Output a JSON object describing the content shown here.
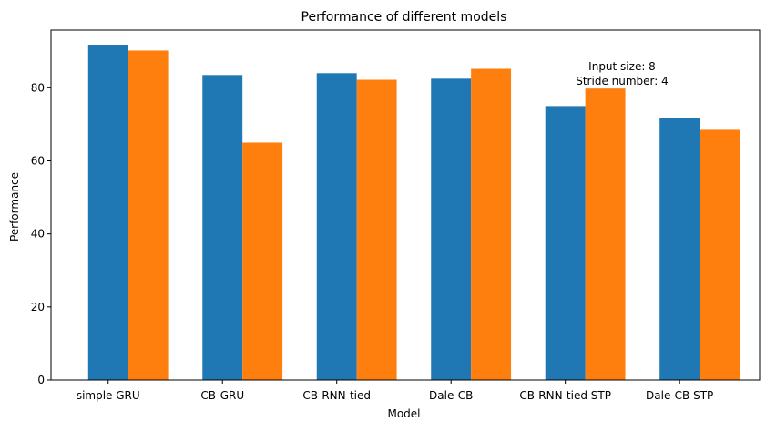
{
  "chart_data": {
    "type": "bar",
    "title": "Performance of different models",
    "xlabel": "Model",
    "ylabel": "Performance",
    "categories": [
      "simple GRU",
      "CB-GRU",
      "CB-RNN-tied",
      "Dale-CB",
      "CB-RNN-tied STP",
      "Dale-CB STP"
    ],
    "series": [
      {
        "color": "#1f77b4",
        "values": [
          91.8,
          83.5,
          84.0,
          82.5,
          75.0,
          71.8
        ]
      },
      {
        "color": "#ff7f0e",
        "values": [
          90.2,
          65.0,
          82.2,
          85.2,
          79.8,
          68.5
        ]
      }
    ],
    "ylim": [
      0,
      95.8
    ],
    "yticks": [
      0,
      20,
      40,
      60,
      80
    ],
    "annotation": {
      "lines": [
        "Input size: 8",
        "Stride number: 4"
      ]
    },
    "grid": false,
    "legend": "none"
  }
}
